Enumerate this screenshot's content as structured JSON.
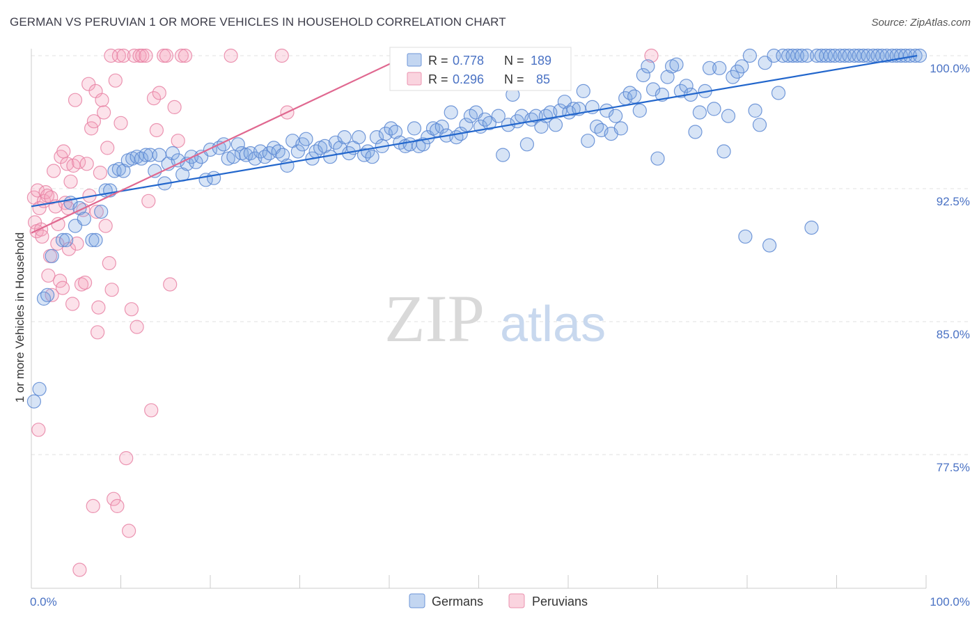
{
  "header": {
    "title": "GERMAN VS PERUVIAN 1 OR MORE VEHICLES IN HOUSEHOLD CORRELATION CHART",
    "source": "Source: ZipAtlas.com"
  },
  "watermark": {
    "zip": "ZIP",
    "atlas": "atlas"
  },
  "legend": {
    "r_label": "R =",
    "n_label": "N =",
    "entries": [
      {
        "r": "0.778",
        "n": "189",
        "color": "#7ba4e0"
      },
      {
        "r": "0.296",
        "n": "85",
        "color": "#f4a0b8"
      }
    ]
  },
  "bottom_legend": {
    "germans": "Germans",
    "peruvians": "Peruvians"
  },
  "chart_data": {
    "type": "scatter",
    "title": "GERMAN VS PERUVIAN 1 OR MORE VEHICLES IN HOUSEHOLD CORRELATION CHART",
    "xlabel": "",
    "ylabel": "1 or more Vehicles in Household",
    "xlim": [
      0,
      100
    ],
    "ylim": [
      70.5,
      101.0
    ],
    "x_tick_labels": [
      "0.0%",
      "100.0%"
    ],
    "y_ticks": [
      {
        "value": 100.0,
        "label": "100.0%"
      },
      {
        "value": 92.5,
        "label": "92.5%"
      },
      {
        "value": 85.0,
        "label": "85.0%"
      },
      {
        "value": 77.5,
        "label": "77.5%"
      }
    ],
    "grid": true,
    "legend_placement": "top-center",
    "series": [
      {
        "name": "Germans",
        "color": "#7ba4e0",
        "line_color": "#2266cc",
        "r": 0.778,
        "n": 189,
        "trend": [
          [
            0,
            91.5
          ],
          [
            99,
            100.0
          ]
        ],
        "points": [
          [
            0.3,
            80.5
          ],
          [
            0.9,
            81.2
          ],
          [
            1.4,
            86.3
          ],
          [
            1.8,
            86.5
          ],
          [
            2.3,
            88.7
          ],
          [
            3.5,
            89.6
          ],
          [
            3.9,
            89.6
          ],
          [
            4.4,
            91.7
          ],
          [
            4.9,
            90.4
          ],
          [
            5.4,
            91.4
          ],
          [
            5.9,
            90.8
          ],
          [
            6.8,
            89.6
          ],
          [
            7.2,
            89.6
          ],
          [
            7.8,
            91.2
          ],
          [
            8.3,
            92.4
          ],
          [
            8.8,
            92.4
          ],
          [
            9.3,
            93.5
          ],
          [
            9.8,
            93.6
          ],
          [
            10.3,
            93.5
          ],
          [
            10.8,
            94.1
          ],
          [
            11.3,
            94.2
          ],
          [
            11.8,
            94.3
          ],
          [
            12.3,
            94.2
          ],
          [
            12.8,
            94.4
          ],
          [
            13.3,
            94.4
          ],
          [
            13.8,
            93.5
          ],
          [
            14.3,
            94.4
          ],
          [
            14.9,
            92.8
          ],
          [
            15.3,
            93.9
          ],
          [
            15.8,
            94.5
          ],
          [
            16.4,
            94.1
          ],
          [
            16.9,
            93.3
          ],
          [
            17.4,
            93.9
          ],
          [
            17.9,
            94.3
          ],
          [
            18.4,
            94.0
          ],
          [
            19.0,
            94.3
          ],
          [
            19.5,
            93.0
          ],
          [
            20.0,
            94.7
          ],
          [
            20.4,
            93.1
          ],
          [
            21.0,
            94.8
          ],
          [
            21.5,
            95.0
          ],
          [
            22.0,
            94.2
          ],
          [
            22.6,
            94.3
          ],
          [
            23.1,
            95.0
          ],
          [
            23.5,
            94.5
          ],
          [
            24.0,
            94.4
          ],
          [
            24.5,
            94.5
          ],
          [
            25.0,
            94.2
          ],
          [
            25.6,
            94.6
          ],
          [
            26.1,
            94.3
          ],
          [
            26.6,
            94.5
          ],
          [
            27.1,
            94.8
          ],
          [
            27.6,
            94.6
          ],
          [
            28.1,
            94.4
          ],
          [
            28.6,
            93.8
          ],
          [
            29.2,
            95.2
          ],
          [
            29.8,
            94.6
          ],
          [
            30.3,
            95.0
          ],
          [
            30.7,
            95.3
          ],
          [
            31.4,
            94.2
          ],
          [
            31.8,
            94.6
          ],
          [
            32.3,
            94.8
          ],
          [
            32.8,
            94.9
          ],
          [
            33.4,
            94.3
          ],
          [
            34.0,
            95.1
          ],
          [
            34.5,
            94.8
          ],
          [
            35.0,
            95.4
          ],
          [
            35.5,
            94.5
          ],
          [
            36.0,
            94.8
          ],
          [
            36.6,
            95.4
          ],
          [
            37.2,
            94.4
          ],
          [
            37.6,
            94.6
          ],
          [
            38.1,
            94.3
          ],
          [
            38.6,
            95.4
          ],
          [
            39.2,
            94.9
          ],
          [
            39.6,
            95.6
          ],
          [
            40.2,
            95.9
          ],
          [
            40.7,
            95.7
          ],
          [
            41.2,
            95.1
          ],
          [
            41.8,
            94.9
          ],
          [
            42.3,
            95.0
          ],
          [
            42.8,
            95.9
          ],
          [
            43.3,
            94.9
          ],
          [
            43.8,
            95.0
          ],
          [
            44.3,
            95.4
          ],
          [
            44.9,
            95.9
          ],
          [
            45.3,
            95.8
          ],
          [
            45.9,
            96.0
          ],
          [
            46.4,
            95.5
          ],
          [
            46.9,
            96.8
          ],
          [
            47.5,
            95.4
          ],
          [
            48.0,
            95.6
          ],
          [
            48.6,
            96.1
          ],
          [
            49.1,
            96.6
          ],
          [
            49.7,
            96.8
          ],
          [
            50.2,
            96.0
          ],
          [
            50.7,
            96.4
          ],
          [
            51.2,
            96.2
          ],
          [
            52.2,
            96.6
          ],
          [
            52.7,
            94.4
          ],
          [
            53.3,
            96.1
          ],
          [
            53.8,
            97.8
          ],
          [
            54.3,
            96.3
          ],
          [
            54.8,
            96.6
          ],
          [
            55.4,
            95.0
          ],
          [
            55.9,
            96.4
          ],
          [
            56.4,
            96.6
          ],
          [
            57.0,
            96.0
          ],
          [
            57.5,
            96.6
          ],
          [
            58.0,
            96.8
          ],
          [
            58.6,
            96.1
          ],
          [
            59.1,
            96.9
          ],
          [
            59.6,
            97.4
          ],
          [
            60.1,
            96.8
          ],
          [
            60.6,
            97.0
          ],
          [
            61.2,
            97.0
          ],
          [
            61.7,
            98.0
          ],
          [
            62.2,
            95.2
          ],
          [
            62.7,
            97.1
          ],
          [
            63.2,
            96.0
          ],
          [
            63.7,
            95.8
          ],
          [
            64.3,
            96.9
          ],
          [
            64.8,
            95.6
          ],
          [
            65.3,
            96.6
          ],
          [
            65.9,
            95.9
          ],
          [
            66.4,
            97.6
          ],
          [
            66.9,
            97.9
          ],
          [
            67.4,
            97.7
          ],
          [
            68.0,
            96.9
          ],
          [
            68.4,
            98.9
          ],
          [
            68.9,
            99.4
          ],
          [
            69.5,
            98.1
          ],
          [
            70.0,
            94.2
          ],
          [
            70.5,
            97.8
          ],
          [
            71.1,
            98.8
          ],
          [
            71.6,
            99.4
          ],
          [
            72.1,
            99.5
          ],
          [
            72.6,
            98.0
          ],
          [
            73.2,
            98.3
          ],
          [
            73.7,
            97.8
          ],
          [
            74.2,
            95.7
          ],
          [
            74.7,
            96.8
          ],
          [
            75.3,
            98.0
          ],
          [
            75.8,
            99.3
          ],
          [
            76.3,
            97.0
          ],
          [
            76.9,
            99.3
          ],
          [
            77.4,
            94.6
          ],
          [
            77.9,
            96.6
          ],
          [
            78.4,
            98.8
          ],
          [
            78.9,
            99.1
          ],
          [
            79.4,
            99.4
          ],
          [
            79.8,
            89.8
          ],
          [
            80.3,
            100.0
          ],
          [
            80.9,
            96.9
          ],
          [
            81.4,
            96.1
          ],
          [
            82.0,
            99.6
          ],
          [
            82.5,
            89.3
          ],
          [
            83.0,
            100.0
          ],
          [
            83.5,
            97.9
          ],
          [
            84.0,
            100.0
          ],
          [
            84.6,
            100.0
          ],
          [
            85.1,
            100.0
          ],
          [
            85.6,
            100.0
          ],
          [
            86.1,
            100.0
          ],
          [
            86.7,
            100.0
          ],
          [
            87.2,
            90.3
          ],
          [
            87.8,
            100.0
          ],
          [
            88.3,
            100.0
          ],
          [
            88.8,
            100.0
          ],
          [
            89.3,
            100.0
          ],
          [
            89.8,
            100.0
          ],
          [
            90.4,
            100.0
          ],
          [
            90.9,
            100.0
          ],
          [
            91.4,
            100.0
          ],
          [
            92.0,
            100.0
          ],
          [
            92.5,
            100.0
          ],
          [
            93.0,
            100.0
          ],
          [
            93.5,
            100.0
          ],
          [
            94.1,
            100.0
          ],
          [
            94.6,
            100.0
          ],
          [
            95.1,
            100.0
          ],
          [
            95.6,
            100.0
          ],
          [
            96.2,
            100.0
          ],
          [
            96.7,
            100.0
          ],
          [
            97.2,
            100.0
          ],
          [
            97.7,
            100.0
          ],
          [
            98.2,
            100.0
          ],
          [
            98.8,
            100.0
          ],
          [
            99.3,
            100.0
          ]
        ]
      },
      {
        "name": "Peruvians",
        "color": "#f4a0b8",
        "line_color": "#e06890",
        "r": 0.296,
        "n": 85,
        "trend": [
          [
            0,
            90.0
          ],
          [
            42,
            100.0
          ]
        ],
        "points": [
          [
            0.3,
            92.0
          ],
          [
            0.4,
            90.6
          ],
          [
            0.6,
            90.1
          ],
          [
            0.7,
            92.4
          ],
          [
            0.8,
            78.9
          ],
          [
            0.9,
            91.4
          ],
          [
            1.1,
            90.2
          ],
          [
            1.2,
            89.8
          ],
          [
            1.4,
            91.8
          ],
          [
            1.6,
            92.3
          ],
          [
            1.8,
            92.1
          ],
          [
            1.9,
            87.6
          ],
          [
            2.1,
            88.7
          ],
          [
            2.2,
            92.0
          ],
          [
            2.3,
            86.5
          ],
          [
            2.5,
            93.5
          ],
          [
            2.7,
            91.5
          ],
          [
            2.9,
            89.4
          ],
          [
            3.0,
            90.5
          ],
          [
            3.2,
            87.3
          ],
          [
            3.3,
            94.3
          ],
          [
            3.5,
            86.9
          ],
          [
            3.6,
            94.6
          ],
          [
            3.8,
            91.7
          ],
          [
            4.0,
            93.9
          ],
          [
            4.1,
            91.4
          ],
          [
            4.2,
            89.1
          ],
          [
            4.4,
            92.9
          ],
          [
            4.6,
            86.0
          ],
          [
            4.7,
            93.8
          ],
          [
            4.9,
            97.5
          ],
          [
            5.1,
            89.4
          ],
          [
            5.3,
            94.0
          ],
          [
            5.4,
            71.0
          ],
          [
            5.6,
            87.1
          ],
          [
            5.8,
            91.3
          ],
          [
            6.0,
            87.2
          ],
          [
            6.2,
            93.9
          ],
          [
            6.4,
            98.4
          ],
          [
            6.5,
            92.1
          ],
          [
            6.7,
            95.9
          ],
          [
            6.9,
            74.6
          ],
          [
            7.0,
            96.3
          ],
          [
            7.2,
            98.0
          ],
          [
            7.3,
            91.2
          ],
          [
            7.4,
            84.4
          ],
          [
            7.5,
            85.8
          ],
          [
            7.7,
            93.4
          ],
          [
            7.9,
            97.5
          ],
          [
            8.1,
            96.8
          ],
          [
            8.3,
            90.4
          ],
          [
            8.5,
            94.8
          ],
          [
            8.7,
            88.3
          ],
          [
            8.9,
            100.0
          ],
          [
            9.0,
            86.8
          ],
          [
            9.2,
            75.0
          ],
          [
            9.4,
            98.6
          ],
          [
            9.6,
            74.6
          ],
          [
            9.8,
            100.0
          ],
          [
            10.0,
            96.2
          ],
          [
            10.3,
            100.0
          ],
          [
            10.6,
            77.3
          ],
          [
            10.9,
            73.2
          ],
          [
            11.2,
            85.7
          ],
          [
            11.5,
            100.0
          ],
          [
            11.8,
            84.7
          ],
          [
            12.1,
            100.0
          ],
          [
            12.4,
            100.0
          ],
          [
            12.8,
            100.0
          ],
          [
            13.1,
            91.8
          ],
          [
            13.4,
            80.0
          ],
          [
            13.7,
            97.6
          ],
          [
            14.0,
            95.8
          ],
          [
            14.3,
            97.9
          ],
          [
            14.8,
            100.0
          ],
          [
            15.1,
            100.0
          ],
          [
            15.5,
            87.1
          ],
          [
            16.0,
            97.1
          ],
          [
            16.4,
            95.2
          ],
          [
            16.8,
            100.0
          ],
          [
            17.2,
            100.0
          ],
          [
            22.3,
            100.0
          ],
          [
            28.0,
            100.0
          ],
          [
            28.6,
            96.8
          ],
          [
            69.3,
            100.0
          ]
        ]
      }
    ]
  }
}
